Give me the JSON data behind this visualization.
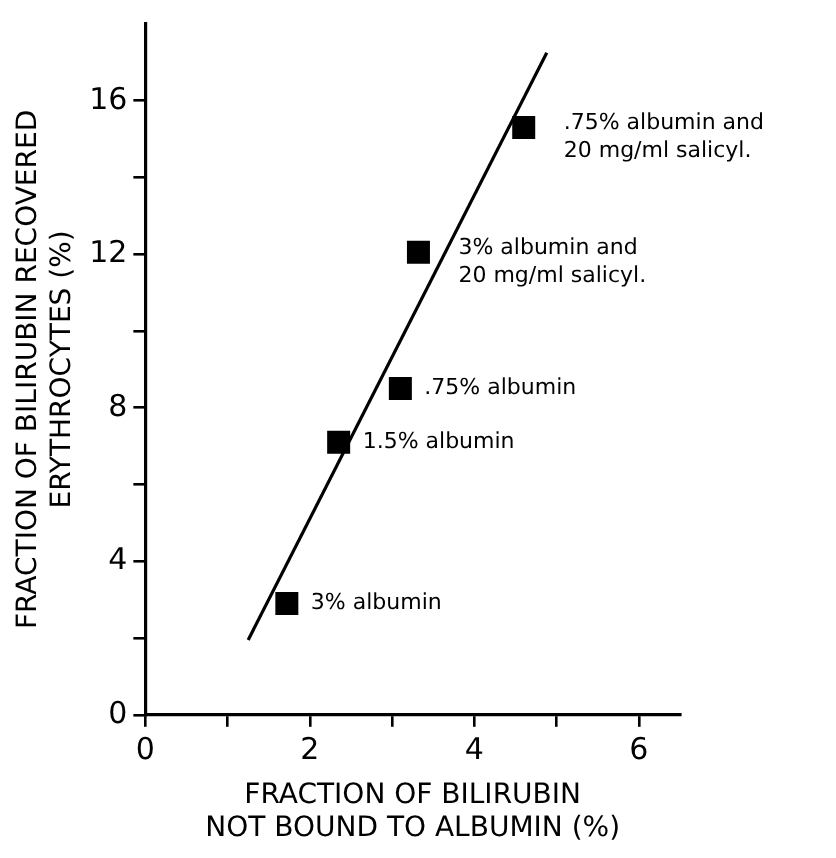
{
  "chart_data": {
    "type": "scatter",
    "xlabel": "FRACTION OF BILIRUBIN\nNOT BOUND TO ALBUMIN (%)",
    "ylabel": "FRACTION OF BILIRUBIN RECOVERED\nERYTHROCYTES (%)",
    "series": [
      {
        "color": "#000000",
        "marker": "square",
        "x": [
          1.72,
          2.35,
          3.1,
          3.32,
          4.6
        ],
        "values": [
          2.9,
          7.1,
          8.5,
          12.05,
          15.3
        ]
      },
      {
        "type": "line",
        "color": "#000000",
        "marker": "none",
        "line_style": "solid",
        "x": [
          1.25,
          4.88
        ],
        "values": [
          1.95,
          17.25
        ]
      }
    ],
    "xlim": [
      0,
      6.5
    ],
    "ylim": [
      0,
      18
    ],
    "xticks": [
      0,
      {
        "value": 1,
        "label": null
      },
      2,
      {
        "value": 3,
        "label": null
      },
      4,
      {
        "value": 5,
        "label": null
      },
      6
    ],
    "yticks": [
      0,
      {
        "value": 2,
        "label": null
      },
      4,
      {
        "value": 6,
        "label": null
      },
      8,
      {
        "value": 10,
        "label": null
      },
      12,
      {
        "value": 14,
        "label": null
      },
      16
    ],
    "grid": false,
    "legend": false,
    "annotations": [
      {
        "text": "3% albumin",
        "x": 1.72,
        "y": 2.9
      },
      {
        "text": "1.5% albumin",
        "x": 2.35,
        "y": 7.1
      },
      {
        "text": ".75% albumin",
        "x": 3.1,
        "y": 8.5
      },
      {
        "text": "3% albumin and\n20 mg/ml salicyl.",
        "x": 3.32,
        "y": 12.05
      },
      {
        "text": ".75% albumin and\n20 mg/ml salicyl.",
        "x": 4.6,
        "y": 15.3
      }
    ]
  }
}
